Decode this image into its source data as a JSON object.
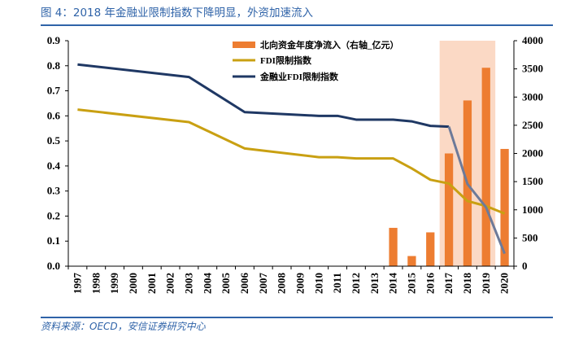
{
  "figure": {
    "title": "图 4：2018 年金融业限制指数下降明显，外资加速流入",
    "source": "资料来源：OECD，安信证券研究中心"
  },
  "colors": {
    "bars": "#ed7d31",
    "highlight_band": "#fbd9c5",
    "fdi_line": "#c9a012",
    "finance_line": "#1f3864",
    "finance_line_faded": "#6d7a99",
    "title_blue": "#2f63a8"
  },
  "chart_data": {
    "type": "bar+line",
    "categories": [
      "1997",
      "1998",
      "1999",
      "2000",
      "2001",
      "2002",
      "2003",
      "2004",
      "2005",
      "2006",
      "2007",
      "2008",
      "2009",
      "2010",
      "2011",
      "2012",
      "2013",
      "2014",
      "2015",
      "2016",
      "2017",
      "2018",
      "2019",
      "2020"
    ],
    "y_left": {
      "min": 0,
      "max": 0.9,
      "ticks": [
        "0.0",
        "0.1",
        "0.2",
        "0.3",
        "0.4",
        "0.5",
        "0.6",
        "0.7",
        "0.8",
        "0.9"
      ]
    },
    "y_right": {
      "min": 0,
      "max": 4000,
      "ticks": [
        "0",
        "500",
        "1000",
        "1500",
        "2000",
        "2500",
        "3000",
        "3500",
        "4000"
      ]
    },
    "highlight_range": [
      "2017",
      "2019"
    ],
    "grid": false,
    "legend_position": "top-center",
    "series": [
      {
        "name": "北向资金年度净流入（右轴_亿元）",
        "kind": "bar",
        "axis": "right",
        "values": [
          null,
          null,
          null,
          null,
          null,
          null,
          null,
          null,
          null,
          null,
          null,
          null,
          null,
          null,
          null,
          null,
          null,
          680,
          180,
          600,
          2000,
          2940,
          3520,
          2080
        ]
      },
      {
        "name": "FDI限制指数",
        "kind": "line",
        "axis": "left",
        "values": [
          0.625,
          null,
          null,
          null,
          null,
          null,
          0.575,
          null,
          null,
          0.47,
          null,
          null,
          null,
          0.435,
          0.435,
          0.43,
          0.43,
          0.43,
          0.39,
          0.345,
          0.33,
          0.26,
          0.24,
          0.21
        ]
      },
      {
        "name": "金融业FDI限制指数",
        "kind": "line",
        "axis": "left",
        "values": [
          0.805,
          null,
          null,
          null,
          null,
          null,
          0.755,
          null,
          null,
          0.615,
          null,
          null,
          null,
          0.6,
          0.6,
          0.585,
          0.585,
          0.585,
          0.578,
          0.56,
          0.557,
          0.328,
          0.235,
          0.05
        ]
      }
    ]
  }
}
